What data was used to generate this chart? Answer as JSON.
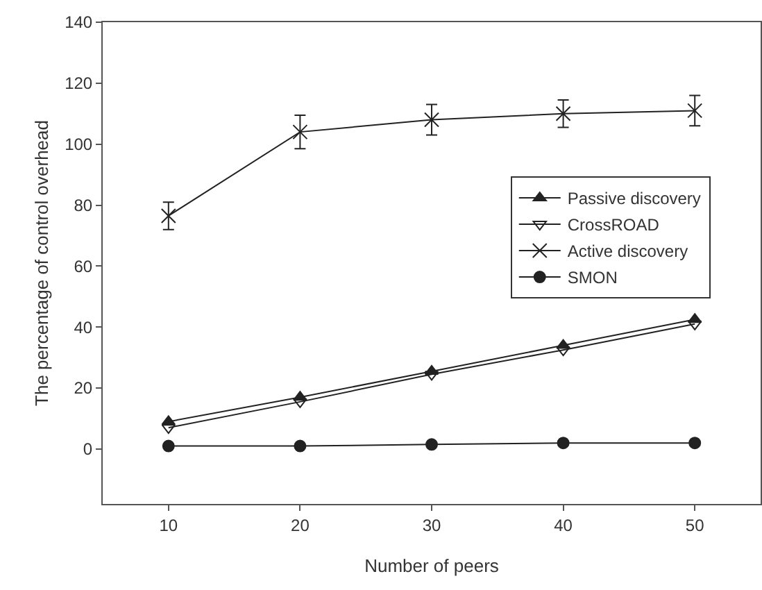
{
  "chart_data": {
    "type": "line",
    "xlabel": "Number of peers",
    "ylabel": "The percentage of control overhead",
    "x": [
      10,
      20,
      30,
      40,
      50
    ],
    "series": [
      {
        "name": "Passive discovery",
        "color": "#222222",
        "marker": "triangle",
        "values": [
          9,
          17,
          25.5,
          34,
          42.5
        ]
      },
      {
        "name": "CrossROAD",
        "color": "#222222",
        "marker": "triangle-down-open",
        "values": [
          7,
          15.5,
          24.5,
          32.5,
          41
        ]
      },
      {
        "name": "Active discovery",
        "color": "#222222",
        "marker": "cross",
        "values": [
          76.5,
          104,
          108,
          110,
          111
        ],
        "errors": [
          4.5,
          5.5,
          5,
          4.5,
          5
        ]
      },
      {
        "name": "SMON",
        "color": "#222222",
        "marker": "circle",
        "values": [
          1,
          1,
          1.5,
          2,
          2
        ]
      }
    ],
    "xlim": [
      5,
      55
    ],
    "xticks": [
      10,
      20,
      30,
      40,
      50
    ],
    "ylim": [
      -18,
      140
    ],
    "yticks": [
      0,
      20,
      40,
      60,
      80,
      100,
      120,
      140
    ],
    "grid": false,
    "legend": "right",
    "line_style": "solid"
  }
}
